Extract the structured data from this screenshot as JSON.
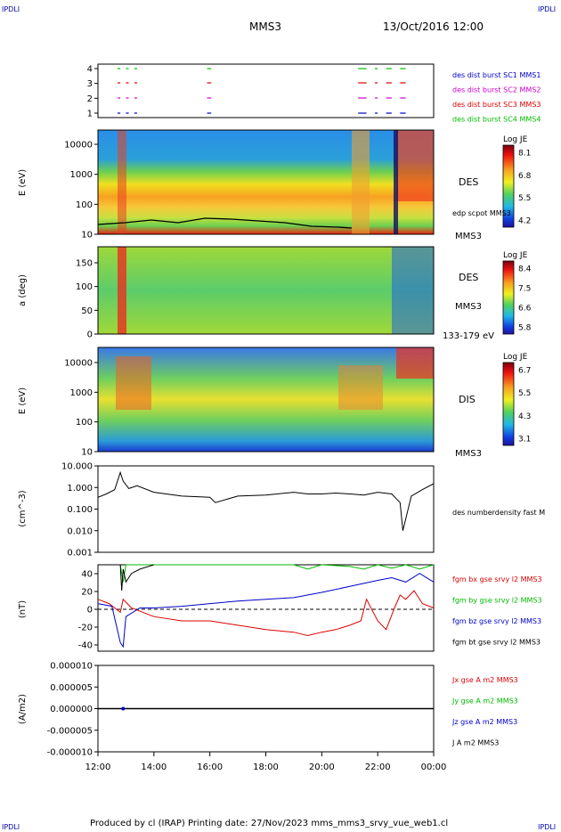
{
  "header": {
    "corner_left_top": "IPDLI",
    "corner_right_top": "IPDLI",
    "mission": "MMS3",
    "datetime": "13/Oct/2016 12:00"
  },
  "footer": {
    "produced": "Produced by cl (IRAP)   Printing date: 27/Nov/2023   mms_mms3_srvy_vue_web1.cl",
    "corner_left_bottom": "IPDLI",
    "corner_right_bottom": "IPDLI"
  },
  "colors": {
    "mms1": "#0000c8",
    "mms2": "#cc00cc",
    "mms3": "#dd0000",
    "mms4": "#00bb00",
    "black": "#000000"
  },
  "chart_data": [
    {
      "type": "timeline",
      "id": "burst",
      "y_ticks": [
        "4",
        "3",
        "2",
        "1"
      ],
      "legend": [
        {
          "label": "des dist burst SC1 MMS1",
          "color": "#0000c8"
        },
        {
          "label": "des dist burst SC2 MMS2",
          "color": "#cc00cc"
        },
        {
          "label": "des dist burst SC3 MMS3",
          "color": "#dd0000"
        },
        {
          "label": "des dist burst SC4 MMS4",
          "color": "#00bb00"
        }
      ],
      "segments_hours": [
        [
          12.7,
          12.8
        ],
        [
          13.0,
          13.1
        ],
        [
          13.3,
          13.4
        ],
        [
          15.9,
          16.05
        ],
        [
          21.3,
          21.6
        ],
        [
          21.9,
          22.0
        ],
        [
          22.3,
          22.5
        ],
        [
          22.8,
          23.0
        ]
      ]
    },
    {
      "type": "heatmap",
      "id": "des_energy",
      "ylabel": "E (eV)",
      "y_ticks": [
        "10000",
        "1000",
        "100",
        "10"
      ],
      "right_label": "DES",
      "overlay_label": "edp scpot MMS3",
      "instrument_label": "MMS3",
      "colorbar": {
        "title": "Log JE",
        "ticks": [
          "8.1",
          "6.8",
          "5.5",
          "4.2"
        ]
      }
    },
    {
      "type": "heatmap",
      "id": "des_pitch",
      "ylabel": "a (deg)",
      "y_ticks": [
        "150",
        "100",
        "50",
        "0"
      ],
      "right_label": "DES",
      "instrument_label": "MMS3",
      "energy_range": "133-179 eV",
      "colorbar": {
        "title": "Log JE",
        "ticks": [
          "8.4",
          "7.5",
          "6.6",
          "5.8"
        ]
      }
    },
    {
      "type": "heatmap",
      "id": "dis_energy",
      "ylabel": "E (eV)",
      "y_ticks": [
        "10000",
        "1000",
        "100",
        "10"
      ],
      "right_label": "DIS",
      "instrument_label": "MMS3",
      "colorbar": {
        "title": "Log JE",
        "ticks": [
          "6.7",
          "5.5",
          "4.3",
          "3.1"
        ]
      }
    },
    {
      "type": "line",
      "id": "density",
      "ylabel": "(cm^-3)",
      "y_ticks": [
        "10.000",
        "1.000",
        "0.100",
        "0.010",
        "0.001"
      ],
      "log_scale": true,
      "ylim": [
        0.001,
        10
      ],
      "legend": [
        {
          "label": "des numberdensity fast M",
          "color": "#000000"
        }
      ],
      "x": [
        12.0,
        12.3,
        12.6,
        12.8,
        12.9,
        13.1,
        13.4,
        14.0,
        15.0,
        16.0,
        16.2,
        17.0,
        18.0,
        19.0,
        19.5,
        20.0,
        20.5,
        21.0,
        21.5,
        22.0,
        22.5,
        22.8,
        22.9,
        23.2,
        23.6,
        24.0
      ],
      "values": [
        0.35,
        0.5,
        0.8,
        5.0,
        2.0,
        0.9,
        1.2,
        0.6,
        0.4,
        0.35,
        0.2,
        0.4,
        0.45,
        0.6,
        0.5,
        0.5,
        0.55,
        0.5,
        0.45,
        0.6,
        0.5,
        0.2,
        0.01,
        0.4,
        0.8,
        1.5
      ]
    },
    {
      "type": "line",
      "id": "magnetic",
      "ylabel": "(nT)",
      "y_ticks": [
        "40",
        "20",
        "0",
        "-20",
        "-40"
      ],
      "ylim": [
        -50,
        50
      ],
      "legend": [
        {
          "label": "fgm bx gse srvy l2 MMS3",
          "color": "#dd0000"
        },
        {
          "label": "fgm by gse srvy l2 MMS3",
          "color": "#00bb00"
        },
        {
          "label": "fgm bz gse srvy l2 MMS3",
          "color": "#0000c8"
        },
        {
          "label": "fgm bt gse srvy l2 MMS3",
          "color": "#000000"
        }
      ],
      "series": [
        {
          "name": "fgm bx gse srvy l2 MMS3",
          "color": "#dd0000",
          "x": [
            12.0,
            12.4,
            12.8,
            12.9,
            13.2,
            14.0,
            15.0,
            16.0,
            17.0,
            18.0,
            19.0,
            19.5,
            20.0,
            20.5,
            21.0,
            21.4,
            21.6,
            22.0,
            22.3,
            22.6,
            22.8,
            23.0,
            23.3,
            23.6,
            24.0
          ],
          "values": [
            10,
            5,
            -5,
            10,
            0,
            -10,
            -15,
            -15,
            -20,
            -25,
            -28,
            -32,
            -28,
            -25,
            -20,
            -15,
            10,
            -15,
            -25,
            0,
            15,
            10,
            20,
            5,
            0
          ]
        },
        {
          "name": "fgm by gse srvy l2 MMS3",
          "color": "#00bb00",
          "x": [
            12.8,
            12.9,
            13.0,
            19.0,
            19.5,
            20.0,
            21.0,
            21.5,
            22.0,
            22.5,
            23.0,
            23.5,
            24.0
          ],
          "values": [
            50,
            30,
            50,
            50,
            45,
            50,
            48,
            45,
            50,
            46,
            50,
            45,
            50
          ]
        },
        {
          "name": "fgm bz gse srvy l2 MMS3",
          "color": "#0000c8",
          "x": [
            12.0,
            12.5,
            12.8,
            12.9,
            13.0,
            13.5,
            14.0,
            15.0,
            16.0,
            17.0,
            18.0,
            19.0,
            20.0,
            21.0,
            22.0,
            22.5,
            23.0,
            23.5,
            24.0
          ],
          "values": [
            5,
            2,
            -40,
            -45,
            -10,
            0,
            0,
            2,
            5,
            8,
            10,
            12,
            18,
            25,
            32,
            35,
            30,
            40,
            30
          ]
        },
        {
          "name": "fgm bt gse srvy l2 MMS3",
          "color": "#000000",
          "x": [
            12.8,
            12.85,
            12.9,
            13.0,
            13.2,
            13.5,
            14.0
          ],
          "values": [
            50,
            20,
            45,
            30,
            40,
            45,
            50
          ]
        }
      ]
    },
    {
      "type": "line",
      "id": "current",
      "ylabel": "(A/m2)",
      "y_ticks": [
        "0.000010",
        "0.000005",
        "0.000000",
        "-0.000005",
        "-0.000010"
      ],
      "ylim": [
        -1e-05,
        1e-05
      ],
      "legend": [
        {
          "label": "Jx gse A m2 MMS3",
          "color": "#dd0000"
        },
        {
          "label": "Jy gse A m2 MMS3",
          "color": "#00bb00"
        },
        {
          "label": "Jz gse A m2 MMS3",
          "color": "#0000c8"
        },
        {
          "label": "J A m2 MMS3",
          "color": "#000000"
        }
      ],
      "x": [
        12.0,
        24.0
      ],
      "values": [
        0.0,
        0.0
      ]
    }
  ],
  "time_axis": {
    "ticks": [
      "12:00",
      "14:00",
      "16:00",
      "18:00",
      "20:00",
      "22:00",
      "00:00"
    ]
  }
}
